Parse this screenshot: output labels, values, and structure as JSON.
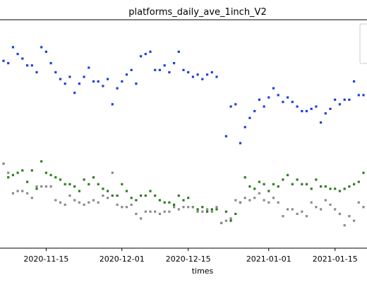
{
  "chart_data": {
    "type": "scatter",
    "title": "platforms_daily_ave_1inch_V2",
    "xlabel": "times",
    "ylabel": "",
    "x_ticks": [
      "2020-11-15",
      "2020-12-01",
      "2020-12-15",
      "2021-01-01",
      "2021-01-15"
    ],
    "xlim": [
      "2020-11-06",
      "2021-01-21"
    ],
    "ylim": [
      0,
      100
    ],
    "grid": false,
    "legend": "top-right",
    "series": [
      {
        "color": "#1f3fdc",
        "points": [
          [
            "2020-11-06",
            82
          ],
          [
            "2020-11-07",
            81
          ],
          [
            "2020-11-08",
            88
          ],
          [
            "2020-11-09",
            85
          ],
          [
            "2020-11-10",
            83
          ],
          [
            "2020-11-11",
            80
          ],
          [
            "2020-11-12",
            80
          ],
          [
            "2020-11-13",
            77
          ],
          [
            "2020-11-14",
            88
          ],
          [
            "2020-11-15",
            86
          ],
          [
            "2020-11-16",
            81
          ],
          [
            "2020-11-17",
            77
          ],
          [
            "2020-11-18",
            74
          ],
          [
            "2020-11-19",
            72
          ],
          [
            "2020-11-20",
            75
          ],
          [
            "2020-11-21",
            68
          ],
          [
            "2020-11-22",
            72
          ],
          [
            "2020-11-23",
            75
          ],
          [
            "2020-11-24",
            79
          ],
          [
            "2020-11-25",
            73
          ],
          [
            "2020-11-26",
            73
          ],
          [
            "2020-11-27",
            71
          ],
          [
            "2020-11-28",
            74
          ],
          [
            "2020-11-29",
            63
          ],
          [
            "2020-11-30",
            70
          ],
          [
            "2020-12-01",
            73
          ],
          [
            "2020-12-02",
            76
          ],
          [
            "2020-12-03",
            78
          ],
          [
            "2020-12-04",
            72
          ],
          [
            "2020-12-05",
            84
          ],
          [
            "2020-12-06",
            85
          ],
          [
            "2020-12-07",
            86
          ],
          [
            "2020-12-08",
            78
          ],
          [
            "2020-12-09",
            78
          ],
          [
            "2020-12-10",
            80
          ],
          [
            "2020-12-11",
            77
          ],
          [
            "2020-12-12",
            81
          ],
          [
            "2020-12-13",
            86
          ],
          [
            "2020-12-14",
            78
          ],
          [
            "2020-12-15",
            77
          ],
          [
            "2020-12-16",
            75
          ],
          [
            "2020-12-17",
            76
          ],
          [
            "2020-12-18",
            74
          ],
          [
            "2020-12-19",
            76
          ],
          [
            "2020-12-20",
            77
          ],
          [
            "2020-12-21",
            75
          ],
          [
            "2020-12-23",
            49
          ],
          [
            "2020-12-24",
            62
          ],
          [
            "2020-12-25",
            63
          ],
          [
            "2020-12-26",
            46
          ],
          [
            "2020-12-27",
            53
          ],
          [
            "2020-12-28",
            57
          ],
          [
            "2020-12-29",
            60
          ],
          [
            "2020-12-30",
            65
          ],
          [
            "2020-12-31",
            62
          ],
          [
            "2021-01-01",
            66
          ],
          [
            "2021-01-02",
            70
          ],
          [
            "2021-01-03",
            67
          ],
          [
            "2021-01-04",
            64
          ],
          [
            "2021-01-05",
            66
          ],
          [
            "2021-01-06",
            64
          ],
          [
            "2021-01-07",
            62
          ],
          [
            "2021-01-08",
            60
          ],
          [
            "2021-01-09",
            60
          ],
          [
            "2021-01-10",
            61
          ],
          [
            "2021-01-11",
            62
          ],
          [
            "2021-01-12",
            55
          ],
          [
            "2021-01-13",
            59
          ],
          [
            "2021-01-14",
            61
          ],
          [
            "2021-01-15",
            65
          ],
          [
            "2021-01-16",
            63
          ],
          [
            "2021-01-17",
            65
          ],
          [
            "2021-01-18",
            65
          ],
          [
            "2021-01-19",
            73
          ],
          [
            "2021-01-20",
            67
          ],
          [
            "2021-01-21",
            67
          ]
        ]
      },
      {
        "color": "#2e7d1e",
        "points": [
          [
            "2020-11-06",
            37
          ],
          [
            "2020-11-07",
            31
          ],
          [
            "2020-11-08",
            32
          ],
          [
            "2020-11-09",
            33
          ],
          [
            "2020-11-10",
            34
          ],
          [
            "2020-11-11",
            29
          ],
          [
            "2020-11-12",
            34
          ],
          [
            "2020-11-13",
            26
          ],
          [
            "2020-11-14",
            38
          ],
          [
            "2020-11-15",
            33
          ],
          [
            "2020-11-16",
            32
          ],
          [
            "2020-11-17",
            31
          ],
          [
            "2020-11-18",
            30
          ],
          [
            "2020-11-19",
            28
          ],
          [
            "2020-11-20",
            28
          ],
          [
            "2020-11-21",
            27
          ],
          [
            "2020-11-22",
            25
          ],
          [
            "2020-11-23",
            30
          ],
          [
            "2020-11-24",
            28
          ],
          [
            "2020-11-25",
            31
          ],
          [
            "2020-11-26",
            28
          ],
          [
            "2020-11-27",
            26
          ],
          [
            "2020-11-28",
            25
          ],
          [
            "2020-11-29",
            23
          ],
          [
            "2020-11-30",
            23
          ],
          [
            "2020-12-01",
            28
          ],
          [
            "2020-12-02",
            25
          ],
          [
            "2020-12-03",
            22
          ],
          [
            "2020-12-04",
            21
          ],
          [
            "2020-12-05",
            23
          ],
          [
            "2020-12-06",
            23
          ],
          [
            "2020-12-07",
            25
          ],
          [
            "2020-12-08",
            23
          ],
          [
            "2020-12-09",
            21
          ],
          [
            "2020-12-10",
            20
          ],
          [
            "2020-12-11",
            20
          ],
          [
            "2020-12-12",
            19
          ],
          [
            "2020-12-13",
            23
          ],
          [
            "2020-12-14",
            21
          ],
          [
            "2020-12-15",
            22
          ],
          [
            "2020-12-16",
            18
          ],
          [
            "2020-12-17",
            17
          ],
          [
            "2020-12-18",
            18
          ],
          [
            "2020-12-19",
            16
          ],
          [
            "2020-12-20",
            17
          ],
          [
            "2020-12-21",
            17
          ],
          [
            "2020-12-22",
            11
          ],
          [
            "2020-12-23",
            16
          ],
          [
            "2020-12-24",
            12
          ],
          [
            "2020-12-25",
            15
          ],
          [
            "2020-12-26",
            20
          ],
          [
            "2020-12-27",
            31
          ],
          [
            "2020-12-28",
            27
          ],
          [
            "2020-12-29",
            26
          ],
          [
            "2020-12-30",
            29
          ],
          [
            "2020-12-31",
            28
          ],
          [
            "2021-01-01",
            25
          ],
          [
            "2021-01-02",
            28
          ],
          [
            "2021-01-03",
            27
          ],
          [
            "2021-01-04",
            30
          ],
          [
            "2021-01-05",
            32
          ],
          [
            "2021-01-06",
            28
          ],
          [
            "2021-01-07",
            30
          ],
          [
            "2021-01-08",
            28
          ],
          [
            "2021-01-09",
            28
          ],
          [
            "2021-01-10",
            26
          ],
          [
            "2021-01-11",
            30
          ],
          [
            "2021-01-12",
            27
          ],
          [
            "2021-01-13",
            27
          ],
          [
            "2021-01-14",
            26
          ],
          [
            "2021-01-15",
            26
          ],
          [
            "2021-01-16",
            25
          ],
          [
            "2021-01-17",
            26
          ],
          [
            "2021-01-18",
            27
          ],
          [
            "2021-01-19",
            28
          ],
          [
            "2021-01-20",
            29
          ],
          [
            "2021-01-21",
            33
          ]
        ]
      },
      {
        "color": "#8a8a8a",
        "points": [
          [
            "2020-11-06",
            37
          ],
          [
            "2020-11-07",
            33
          ],
          [
            "2020-11-08",
            24
          ],
          [
            "2020-11-09",
            25
          ],
          [
            "2020-11-10",
            25
          ],
          [
            "2020-11-11",
            24
          ],
          [
            "2020-11-12",
            22
          ],
          [
            "2020-11-13",
            27
          ],
          [
            "2020-11-14",
            27
          ],
          [
            "2020-11-15",
            27
          ],
          [
            "2020-11-16",
            27
          ],
          [
            "2020-11-17",
            21
          ],
          [
            "2020-11-18",
            20
          ],
          [
            "2020-11-19",
            19
          ],
          [
            "2020-11-20",
            23
          ],
          [
            "2020-11-21",
            21
          ],
          [
            "2020-11-22",
            20
          ],
          [
            "2020-11-23",
            19
          ],
          [
            "2020-11-24",
            20
          ],
          [
            "2020-11-25",
            21
          ],
          [
            "2020-11-26",
            20
          ],
          [
            "2020-11-27",
            23
          ],
          [
            "2020-11-28",
            22
          ],
          [
            "2020-11-29",
            33
          ],
          [
            "2020-11-30",
            19
          ],
          [
            "2020-12-01",
            18
          ],
          [
            "2020-12-02",
            18
          ],
          [
            "2020-12-03",
            19
          ],
          [
            "2020-12-04",
            15
          ],
          [
            "2020-12-05",
            13
          ],
          [
            "2020-12-06",
            16
          ],
          [
            "2020-12-07",
            16
          ],
          [
            "2020-12-08",
            16
          ],
          [
            "2020-12-09",
            15
          ],
          [
            "2020-12-10",
            16
          ],
          [
            "2020-12-11",
            16
          ],
          [
            "2020-12-12",
            18
          ],
          [
            "2020-12-13",
            17
          ],
          [
            "2020-12-14",
            18
          ],
          [
            "2020-12-15",
            18
          ],
          [
            "2020-12-16",
            18
          ],
          [
            "2020-12-17",
            16
          ],
          [
            "2020-12-18",
            16
          ],
          [
            "2020-12-19",
            17
          ],
          [
            "2020-12-20",
            16
          ],
          [
            "2020-12-21",
            18
          ],
          [
            "2020-12-22",
            11
          ],
          [
            "2020-12-23",
            12
          ],
          [
            "2020-12-24",
            13
          ],
          [
            "2020-12-25",
            21
          ],
          [
            "2020-12-26",
            20
          ],
          [
            "2020-12-27",
            22
          ],
          [
            "2020-12-28",
            21
          ],
          [
            "2020-12-29",
            22
          ],
          [
            "2020-12-30",
            24
          ],
          [
            "2020-12-31",
            21
          ],
          [
            "2021-01-01",
            20
          ],
          [
            "2021-01-02",
            22
          ],
          [
            "2021-01-03",
            20
          ],
          [
            "2021-01-04",
            14
          ],
          [
            "2021-01-05",
            17
          ],
          [
            "2021-01-06",
            17
          ],
          [
            "2021-01-07",
            15
          ],
          [
            "2021-01-08",
            16
          ],
          [
            "2021-01-09",
            14
          ],
          [
            "2021-01-10",
            20
          ],
          [
            "2021-01-11",
            18
          ],
          [
            "2021-01-12",
            17
          ],
          [
            "2021-01-13",
            21
          ],
          [
            "2021-01-14",
            19
          ],
          [
            "2021-01-15",
            17
          ],
          [
            "2021-01-16",
            15
          ],
          [
            "2021-01-17",
            10
          ],
          [
            "2021-01-18",
            14
          ],
          [
            "2021-01-19",
            12
          ],
          [
            "2021-01-20",
            20
          ],
          [
            "2021-01-21",
            18
          ]
        ]
      }
    ]
  }
}
